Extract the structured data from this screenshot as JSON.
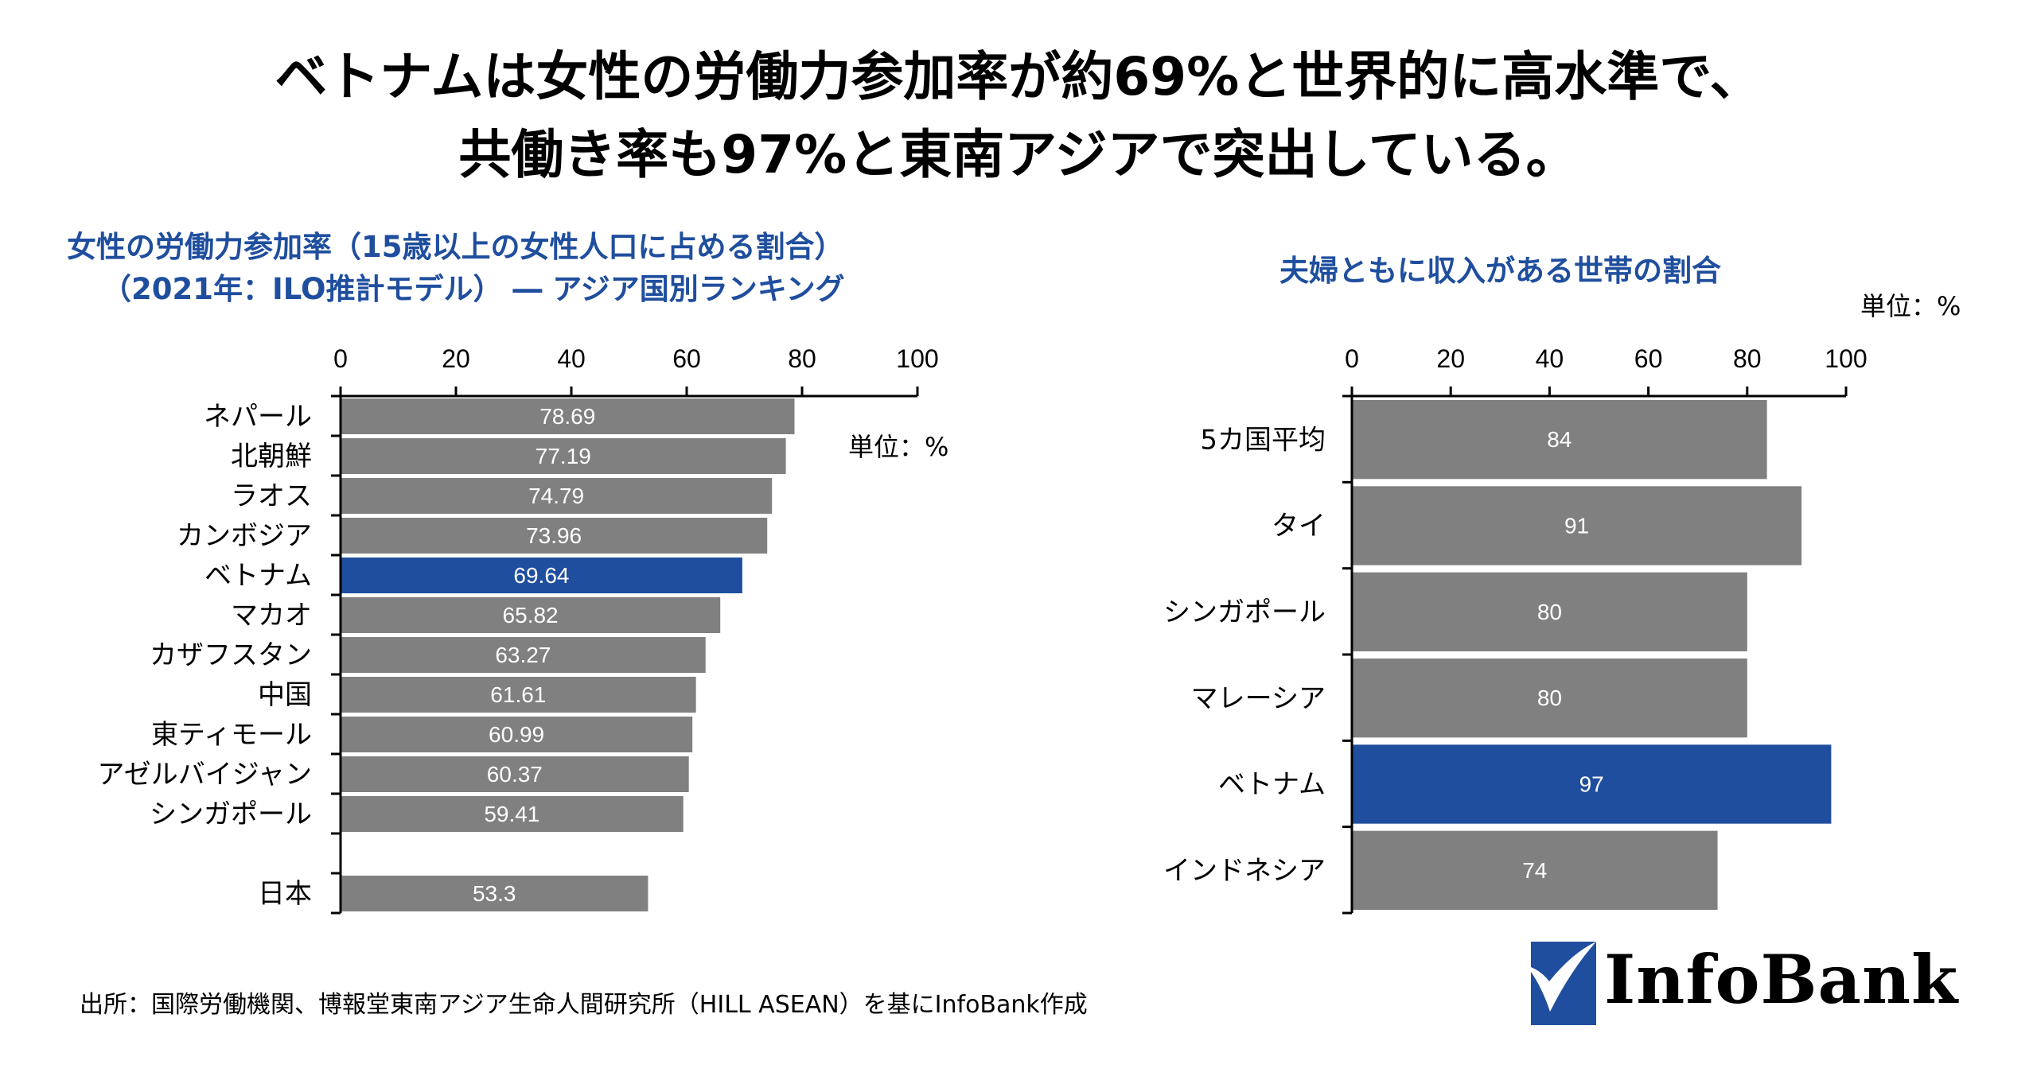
{
  "headline": {
    "line1": "ベトナムは女性の労働力参加率が約69%と世界的に高水準で、",
    "line2": "共働き率も97%と東南アジアで突出している。"
  },
  "colors": {
    "bar_default": "#808080",
    "bar_highlight": "#1f4e9e",
    "title_blue": "#1f4e9e",
    "axis": "#000000",
    "bar_label": "#ffffff"
  },
  "chart_data": [
    {
      "type": "bar",
      "orientation": "horizontal",
      "title": "女性の労働力参加率（15歳以上の女性人口に占める割合）",
      "subtitle": "（2021年：ILO推計モデル） ― アジア国別ランキング",
      "unit_label": "単位：%",
      "xlabel": "",
      "ylabel": "",
      "xlim": [
        0,
        100
      ],
      "xticks": [
        "0",
        "20",
        "40",
        "60",
        "80",
        "100"
      ],
      "grid": false,
      "axis_position": "top",
      "categories": [
        "ネパール",
        "北朝鮮",
        "ラオス",
        "カンボジア",
        "ベトナム",
        "マカオ",
        "カザフスタン",
        "中国",
        "東ティモール",
        "アゼルバイジャン",
        "シンガポール",
        "",
        "日本"
      ],
      "values": [
        78.69,
        77.19,
        74.79,
        73.96,
        69.64,
        65.82,
        63.27,
        61.61,
        60.99,
        60.37,
        59.41,
        null,
        53.3
      ],
      "labels": [
        "78.69",
        "77.19",
        "74.79",
        "73.96",
        "69.64",
        "65.82",
        "63.27",
        "61.61",
        "60.99",
        "60.37",
        "59.41",
        "",
        "53.3"
      ],
      "highlight": "ベトナム"
    },
    {
      "type": "bar",
      "orientation": "horizontal",
      "title": "夫婦ともに収入がある世帯の割合",
      "unit_label": "単位：%",
      "xlabel": "",
      "ylabel": "",
      "xlim": [
        0,
        100
      ],
      "xticks": [
        "0",
        "20",
        "40",
        "60",
        "80",
        "100"
      ],
      "grid": false,
      "axis_position": "top",
      "categories": [
        "5カ国平均",
        "タイ",
        "シンガポール",
        "マレーシア",
        "ベトナム",
        "インドネシア"
      ],
      "values": [
        84,
        91,
        80,
        80,
        97,
        74
      ],
      "labels": [
        "84",
        "91",
        "80",
        "80",
        "97",
        "74"
      ],
      "highlight": "ベトナム"
    }
  ],
  "footnote": "出所：国際労働機関、博報堂東南アジア生命人間研究所（HILL ASEAN）を基にInfoBank作成",
  "logo": {
    "text": "InfoBank",
    "icon": "checkmark-icon"
  }
}
